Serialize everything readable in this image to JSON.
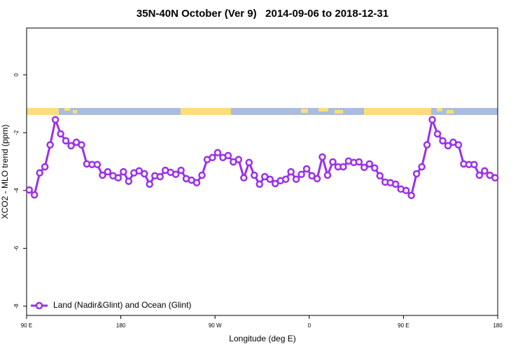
{
  "chart_data": {
    "type": "line",
    "title": "35N-40N October (Ver 9)   2014-09-06 to 2018-12-31",
    "x_label": "Longitude (deg E)",
    "y_label": "XCO2 - MLO trend (ppm)",
    "xlim": [
      90,
      540
    ],
    "xticks": [
      {
        "value": 90,
        "label": "90 E"
      },
      180,
      {
        "value": 270,
        "label": "90 W"
      },
      {
        "value": 360,
        "label": "0"
      },
      {
        "value": 450,
        "label": "90 E"
      },
      {
        "value": 540,
        "label": "180"
      }
    ],
    "ylim": [
      -8.32,
      1.62
    ],
    "yticks": [
      0,
      -2,
      -4,
      -6,
      -8
    ],
    "legend": "bottom-left",
    "x": [
      92.5,
      97.5,
      102.5,
      107.5,
      112.5,
      117.5,
      122.5,
      127.5,
      132.5,
      137.5,
      142.5,
      147.5,
      152.5,
      157.5,
      162.5,
      167.5,
      172.5,
      177.5,
      182.5,
      187.5,
      192.5,
      197.5,
      202.5,
      207.5,
      212.5,
      217.5,
      222.5,
      227.5,
      232.5,
      237.5,
      242.5,
      247.5,
      252.5,
      257.5,
      262.5,
      267.5,
      272.5,
      277.5,
      282.5,
      287.5,
      292.5,
      297.5,
      302.5,
      307.5,
      312.5,
      317.5,
      322.5,
      327.5,
      332.5,
      337.5,
      342.5,
      347.5,
      352.5,
      357.5,
      362.5,
      367.5,
      372.5,
      377.5,
      382.5,
      387.5,
      392.5,
      397.5,
      402.5,
      407.5,
      412.5,
      417.5,
      422.5,
      427.5,
      432.5,
      437.5,
      442.5,
      447.5,
      452.5,
      457.5,
      462.5,
      467.5,
      472.5,
      477.5,
      482.5,
      487.5,
      492.5,
      497.5,
      502.5,
      507.5,
      512.5,
      517.5,
      522.5,
      527.5,
      532.5,
      537.5
    ],
    "series": [
      {
        "name": "Land (Nadir&Glint) and Ocean (Glint)",
        "color": "#9b30e8",
        "values": [
          -3.98,
          -4.15,
          -3.39,
          -3.18,
          -2.42,
          -1.55,
          -2.04,
          -2.28,
          -2.45,
          -2.33,
          -2.42,
          -3.08,
          -3.1,
          -3.1,
          -3.47,
          -3.35,
          -3.49,
          -3.56,
          -3.35,
          -3.68,
          -3.39,
          -3.32,
          -3.42,
          -3.78,
          -3.49,
          -3.52,
          -3.3,
          -3.37,
          -3.44,
          -3.3,
          -3.59,
          -3.64,
          -3.73,
          -3.47,
          -2.93,
          -2.86,
          -2.69,
          -2.86,
          -2.79,
          -3.01,
          -2.93,
          -3.56,
          -3.03,
          -3.47,
          -3.78,
          -3.52,
          -3.61,
          -3.76,
          -3.66,
          -3.61,
          -3.35,
          -3.61,
          -3.44,
          -3.25,
          -3.49,
          -3.59,
          -2.84,
          -3.47,
          -3.01,
          -3.18,
          -3.18,
          -2.98,
          -3.03,
          -3.01,
          -3.2,
          -3.08,
          -3.22,
          -3.49,
          -3.71,
          -3.73,
          -3.78,
          -3.95,
          -4.0,
          -4.17,
          -3.42,
          -3.18,
          -2.42,
          -1.55,
          -2.04,
          -2.28,
          -2.45,
          -2.33,
          -2.42,
          -3.08,
          -3.1,
          -3.1,
          -3.47,
          -3.32,
          -3.47,
          -3.56
        ]
      }
    ]
  }
}
